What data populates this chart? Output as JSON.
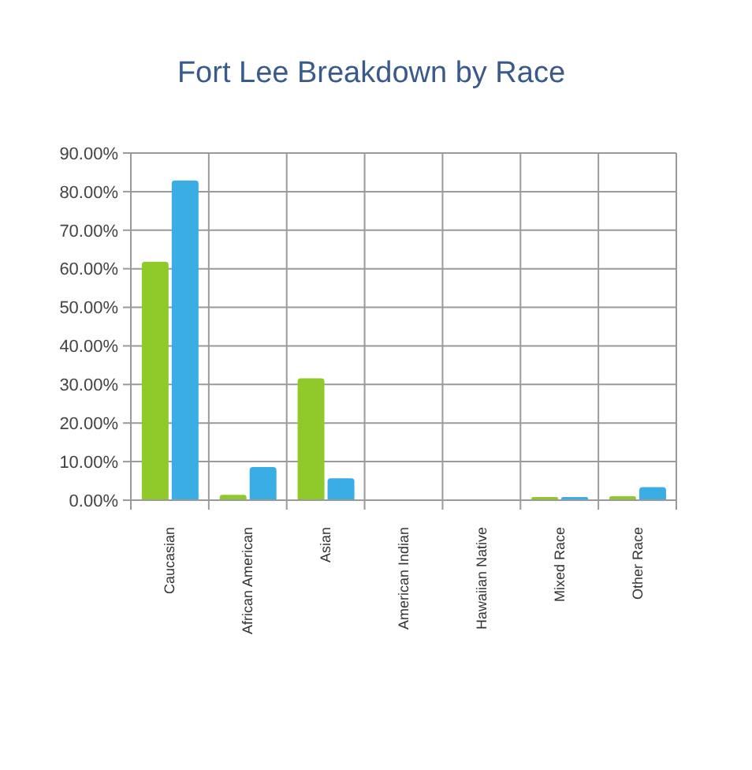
{
  "chart_data": {
    "type": "bar",
    "title": "Fort Lee Breakdown by Race",
    "categories": [
      "Caucasian",
      "African American",
      "Asian",
      "American Indian",
      "Hawaiian Native",
      "Mixed Race",
      "Other Race"
    ],
    "series": [
      {
        "color": "#8fca2a",
        "values": [
          61.8,
          1.4,
          31.6,
          0,
          0,
          0.8,
          1.0
        ]
      },
      {
        "color": "#3aaee4",
        "values": [
          82.9,
          8.6,
          5.7,
          0,
          0,
          0.8,
          3.4
        ]
      }
    ],
    "ylim": [
      0,
      90
    ],
    "yticks": [
      {
        "value": 0,
        "label": "0.00%"
      },
      {
        "value": 10,
        "label": "10.00%"
      },
      {
        "value": 20,
        "label": "20.00%"
      },
      {
        "value": 30,
        "label": "30.00%"
      },
      {
        "value": 40,
        "label": "40.00%"
      },
      {
        "value": 50,
        "label": "50.00%"
      },
      {
        "value": 60,
        "label": "60.00%"
      },
      {
        "value": 70,
        "label": "70.00%"
      },
      {
        "value": 80,
        "label": "80.00%"
      },
      {
        "value": 90,
        "label": "90.00%"
      }
    ],
    "grid": true
  }
}
